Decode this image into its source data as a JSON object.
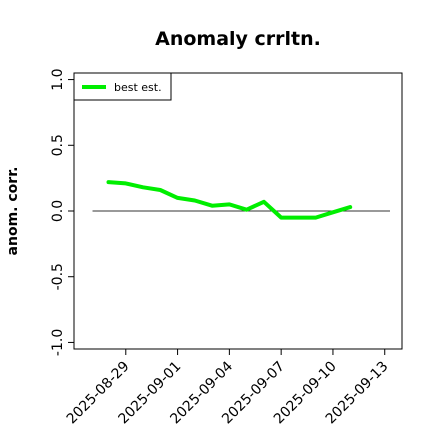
{
  "chart_data": {
    "type": "line",
    "title": "Anomaly crrltn.",
    "xlabel": "",
    "ylabel": "anom. corr.",
    "x_tick_labels": [
      "2025-08-29",
      "2025-09-01",
      "2025-09-04",
      "2025-09-07",
      "2025-09-10",
      "2025-09-13"
    ],
    "y_tick_labels": [
      "-1.0",
      "-0.5",
      "0.0",
      "0.5",
      "1.0"
    ],
    "x_range": [
      "2025-08-26",
      "2025-09-14"
    ],
    "ylim": [
      -1.05,
      1.05
    ],
    "reference_line": 0.0,
    "grid": false,
    "legend_position": "top-left",
    "series": [
      {
        "name": "best est.",
        "color": "#00ee00",
        "x": [
          "2025-08-28",
          "2025-08-29",
          "2025-08-30",
          "2025-08-31",
          "2025-09-01",
          "2025-09-02",
          "2025-09-03",
          "2025-09-04",
          "2025-09-05",
          "2025-09-06",
          "2025-09-07",
          "2025-09-08",
          "2025-09-09",
          "2025-09-10",
          "2025-09-11"
        ],
        "y": [
          0.22,
          0.21,
          0.18,
          0.16,
          0.1,
          0.08,
          0.04,
          0.05,
          0.01,
          0.07,
          -0.05,
          -0.05,
          -0.05,
          -0.01,
          0.03
        ]
      }
    ]
  }
}
